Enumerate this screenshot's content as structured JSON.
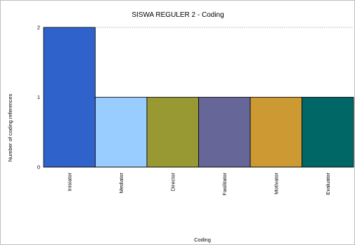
{
  "chart_data": {
    "type": "bar",
    "title": "SISWA REGULER 2 - Coding",
    "xlabel": "Coding",
    "ylabel": "Number of coding references",
    "categories": [
      "Inisiator",
      "Mediator",
      "Director",
      "Fasilitator",
      "Motivator",
      "Evaluator"
    ],
    "values": [
      2,
      1,
      1,
      1,
      1,
      1
    ],
    "colors": [
      "#2f63cb",
      "#99ccff",
      "#999933",
      "#666699",
      "#cc9933",
      "#006666"
    ],
    "yticks": [
      0,
      1,
      2
    ],
    "ylim": [
      0,
      2
    ],
    "grid": true
  }
}
